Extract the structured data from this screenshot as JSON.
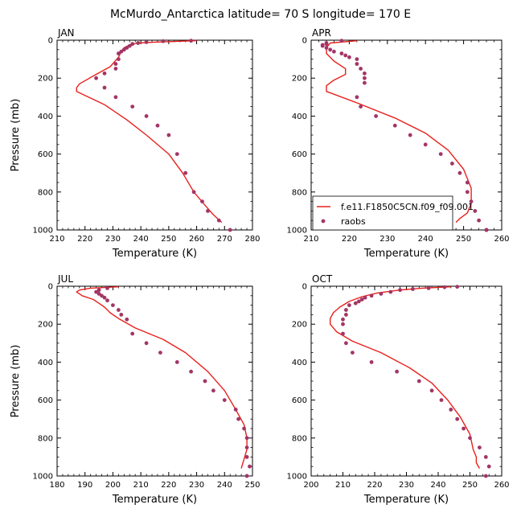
{
  "colors": {
    "model": "#e8201c",
    "obs": "#a33566",
    "axis": "#000000"
  },
  "chart_data": {
    "title": "McMurdo_Antarctica  latitude= 70 S longitude= 170 E",
    "type": "line",
    "legend": {
      "placement": "bottom-right of APR panel",
      "entries": [
        {
          "label": "f.e11.F1850C5CN.f09_f09.001",
          "style": "line"
        },
        {
          "label": "raobs",
          "style": "marker"
        }
      ]
    },
    "panels": [
      {
        "label": "JAN",
        "xlabel": "Temperature (K)",
        "ylabel": "Pressure (mb)",
        "xlim": [
          210,
          280
        ],
        "ylim": [
          1000,
          0
        ],
        "xticks": [
          210,
          220,
          230,
          240,
          250,
          260,
          270,
          280
        ],
        "yticks": [
          0,
          200,
          400,
          600,
          800,
          1000
        ],
        "show_legend": false,
        "model": {
          "T": [
            260,
            255,
            245,
            239,
            236,
            234,
            233,
            232,
            229,
            224,
            218,
            217,
            217,
            227,
            235,
            242,
            250,
            255,
            259,
            263,
            266,
            269
          ],
          "P": [
            2,
            5,
            10,
            15,
            25,
            40,
            60,
            90,
            140,
            180,
            230,
            250,
            270,
            340,
            420,
            500,
            600,
            700,
            800,
            870,
            920,
            960
          ]
        },
        "obs": {
          "T": [
            258,
            248,
            242,
            239,
            237,
            236,
            235,
            234,
            233,
            232,
            232,
            231,
            231,
            227,
            224,
            227,
            231,
            237,
            242,
            246,
            250,
            253,
            256,
            259,
            262,
            264,
            268,
            272
          ],
          "P": [
            3,
            5,
            10,
            15,
            20,
            30,
            40,
            50,
            60,
            70,
            100,
            125,
            150,
            175,
            200,
            250,
            300,
            350,
            400,
            450,
            500,
            600,
            700,
            800,
            850,
            900,
            950,
            1000
          ]
        }
      },
      {
        "label": "APR",
        "xlabel": "Temperature (K)",
        "ylabel": "",
        "xlim": [
          210,
          260
        ],
        "ylim": [
          1000,
          0
        ],
        "xticks": [
          210,
          220,
          230,
          240,
          250,
          260
        ],
        "yticks": [
          0,
          200,
          400,
          600,
          800,
          1000
        ],
        "show_legend": true,
        "model": {
          "T": [
            222,
            215,
            214,
            214,
            216,
            219,
            219,
            216,
            214,
            214,
            222,
            232,
            240,
            246,
            250,
            252,
            252,
            251,
            249,
            248
          ],
          "P": [
            3,
            15,
            40,
            70,
            110,
            150,
            180,
            210,
            240,
            270,
            330,
            410,
            490,
            580,
            680,
            780,
            860,
            910,
            940,
            960
          ]
        },
        "obs": {
          "T": [
            218,
            214,
            214,
            213,
            213,
            214,
            215,
            216,
            218,
            219,
            220,
            222,
            222,
            223,
            224,
            224,
            224,
            222,
            223,
            227,
            232,
            236,
            240,
            244,
            247,
            249,
            251,
            251,
            252,
            253,
            254,
            256,
            256,
            256
          ],
          "P": [
            3,
            15,
            20,
            25,
            30,
            40,
            50,
            60,
            70,
            80,
            90,
            100,
            125,
            150,
            175,
            200,
            225,
            300,
            350,
            400,
            450,
            500,
            550,
            600,
            650,
            700,
            750,
            800,
            850,
            900,
            950,
            1000,
            1000,
            1000
          ]
        }
      },
      {
        "label": "JUL",
        "xlabel": "Temperature (K)",
        "ylabel": "Pressure (mb)",
        "xlim": [
          180,
          250
        ],
        "ylim": [
          1000,
          0
        ],
        "xticks": [
          180,
          190,
          200,
          210,
          220,
          230,
          240,
          250
        ],
        "yticks": [
          0,
          200,
          400,
          600,
          800,
          1000
        ],
        "show_legend": false,
        "model": {
          "T": [
            202,
            192,
            188,
            187,
            189,
            193,
            195,
            197,
            199,
            202,
            208,
            218,
            226,
            234,
            240,
            244,
            247,
            248,
            248,
            247,
            246
          ],
          "P": [
            3,
            10,
            20,
            30,
            50,
            70,
            90,
            110,
            140,
            170,
            220,
            280,
            350,
            450,
            550,
            650,
            730,
            800,
            860,
            910,
            960
          ]
        },
        "obs": {
          "T": [
            198,
            195,
            194,
            195,
            196,
            197,
            198,
            200,
            202,
            203,
            205,
            207,
            212,
            217,
            223,
            228,
            233,
            236,
            240,
            244,
            245,
            247,
            248,
            248,
            248,
            249,
            248
          ],
          "P": [
            10,
            20,
            30,
            40,
            50,
            60,
            75,
            100,
            125,
            150,
            175,
            250,
            300,
            350,
            400,
            450,
            500,
            550,
            600,
            650,
            700,
            750,
            800,
            850,
            900,
            950,
            1000
          ]
        }
      },
      {
        "label": "OCT",
        "xlabel": "Temperature (K)",
        "ylabel": "",
        "xlim": [
          200,
          260
        ],
        "ylim": [
          1000,
          0
        ],
        "xticks": [
          200,
          210,
          220,
          230,
          240,
          250,
          260
        ],
        "yticks": [
          0,
          200,
          400,
          600,
          800,
          1000
        ],
        "show_legend": false,
        "model": {
          "T": [
            244,
            235,
            228,
            221,
            216,
            212,
            209,
            207,
            206,
            206,
            208,
            213,
            222,
            231,
            238,
            243,
            247,
            250,
            251,
            252,
            252,
            253
          ],
          "P": [
            3,
            10,
            20,
            35,
            55,
            80,
            110,
            140,
            170,
            200,
            240,
            290,
            350,
            430,
            510,
            600,
            690,
            780,
            860,
            900,
            930,
            960
          ]
        },
        "obs": {
          "T": [
            246,
            242,
            237,
            232,
            228,
            225,
            222,
            219,
            217,
            216,
            215,
            214,
            212,
            211,
            211,
            210,
            210,
            210,
            211,
            213,
            219,
            227,
            234,
            238,
            241,
            244,
            246,
            248,
            250,
            253,
            255,
            255,
            256
          ],
          "P": [
            3,
            5,
            10,
            15,
            20,
            30,
            40,
            50,
            60,
            70,
            80,
            90,
            100,
            125,
            150,
            175,
            200,
            250,
            300,
            350,
            400,
            450,
            500,
            550,
            600,
            650,
            700,
            750,
            800,
            850,
            900,
            1000,
            950
          ]
        }
      }
    ]
  }
}
